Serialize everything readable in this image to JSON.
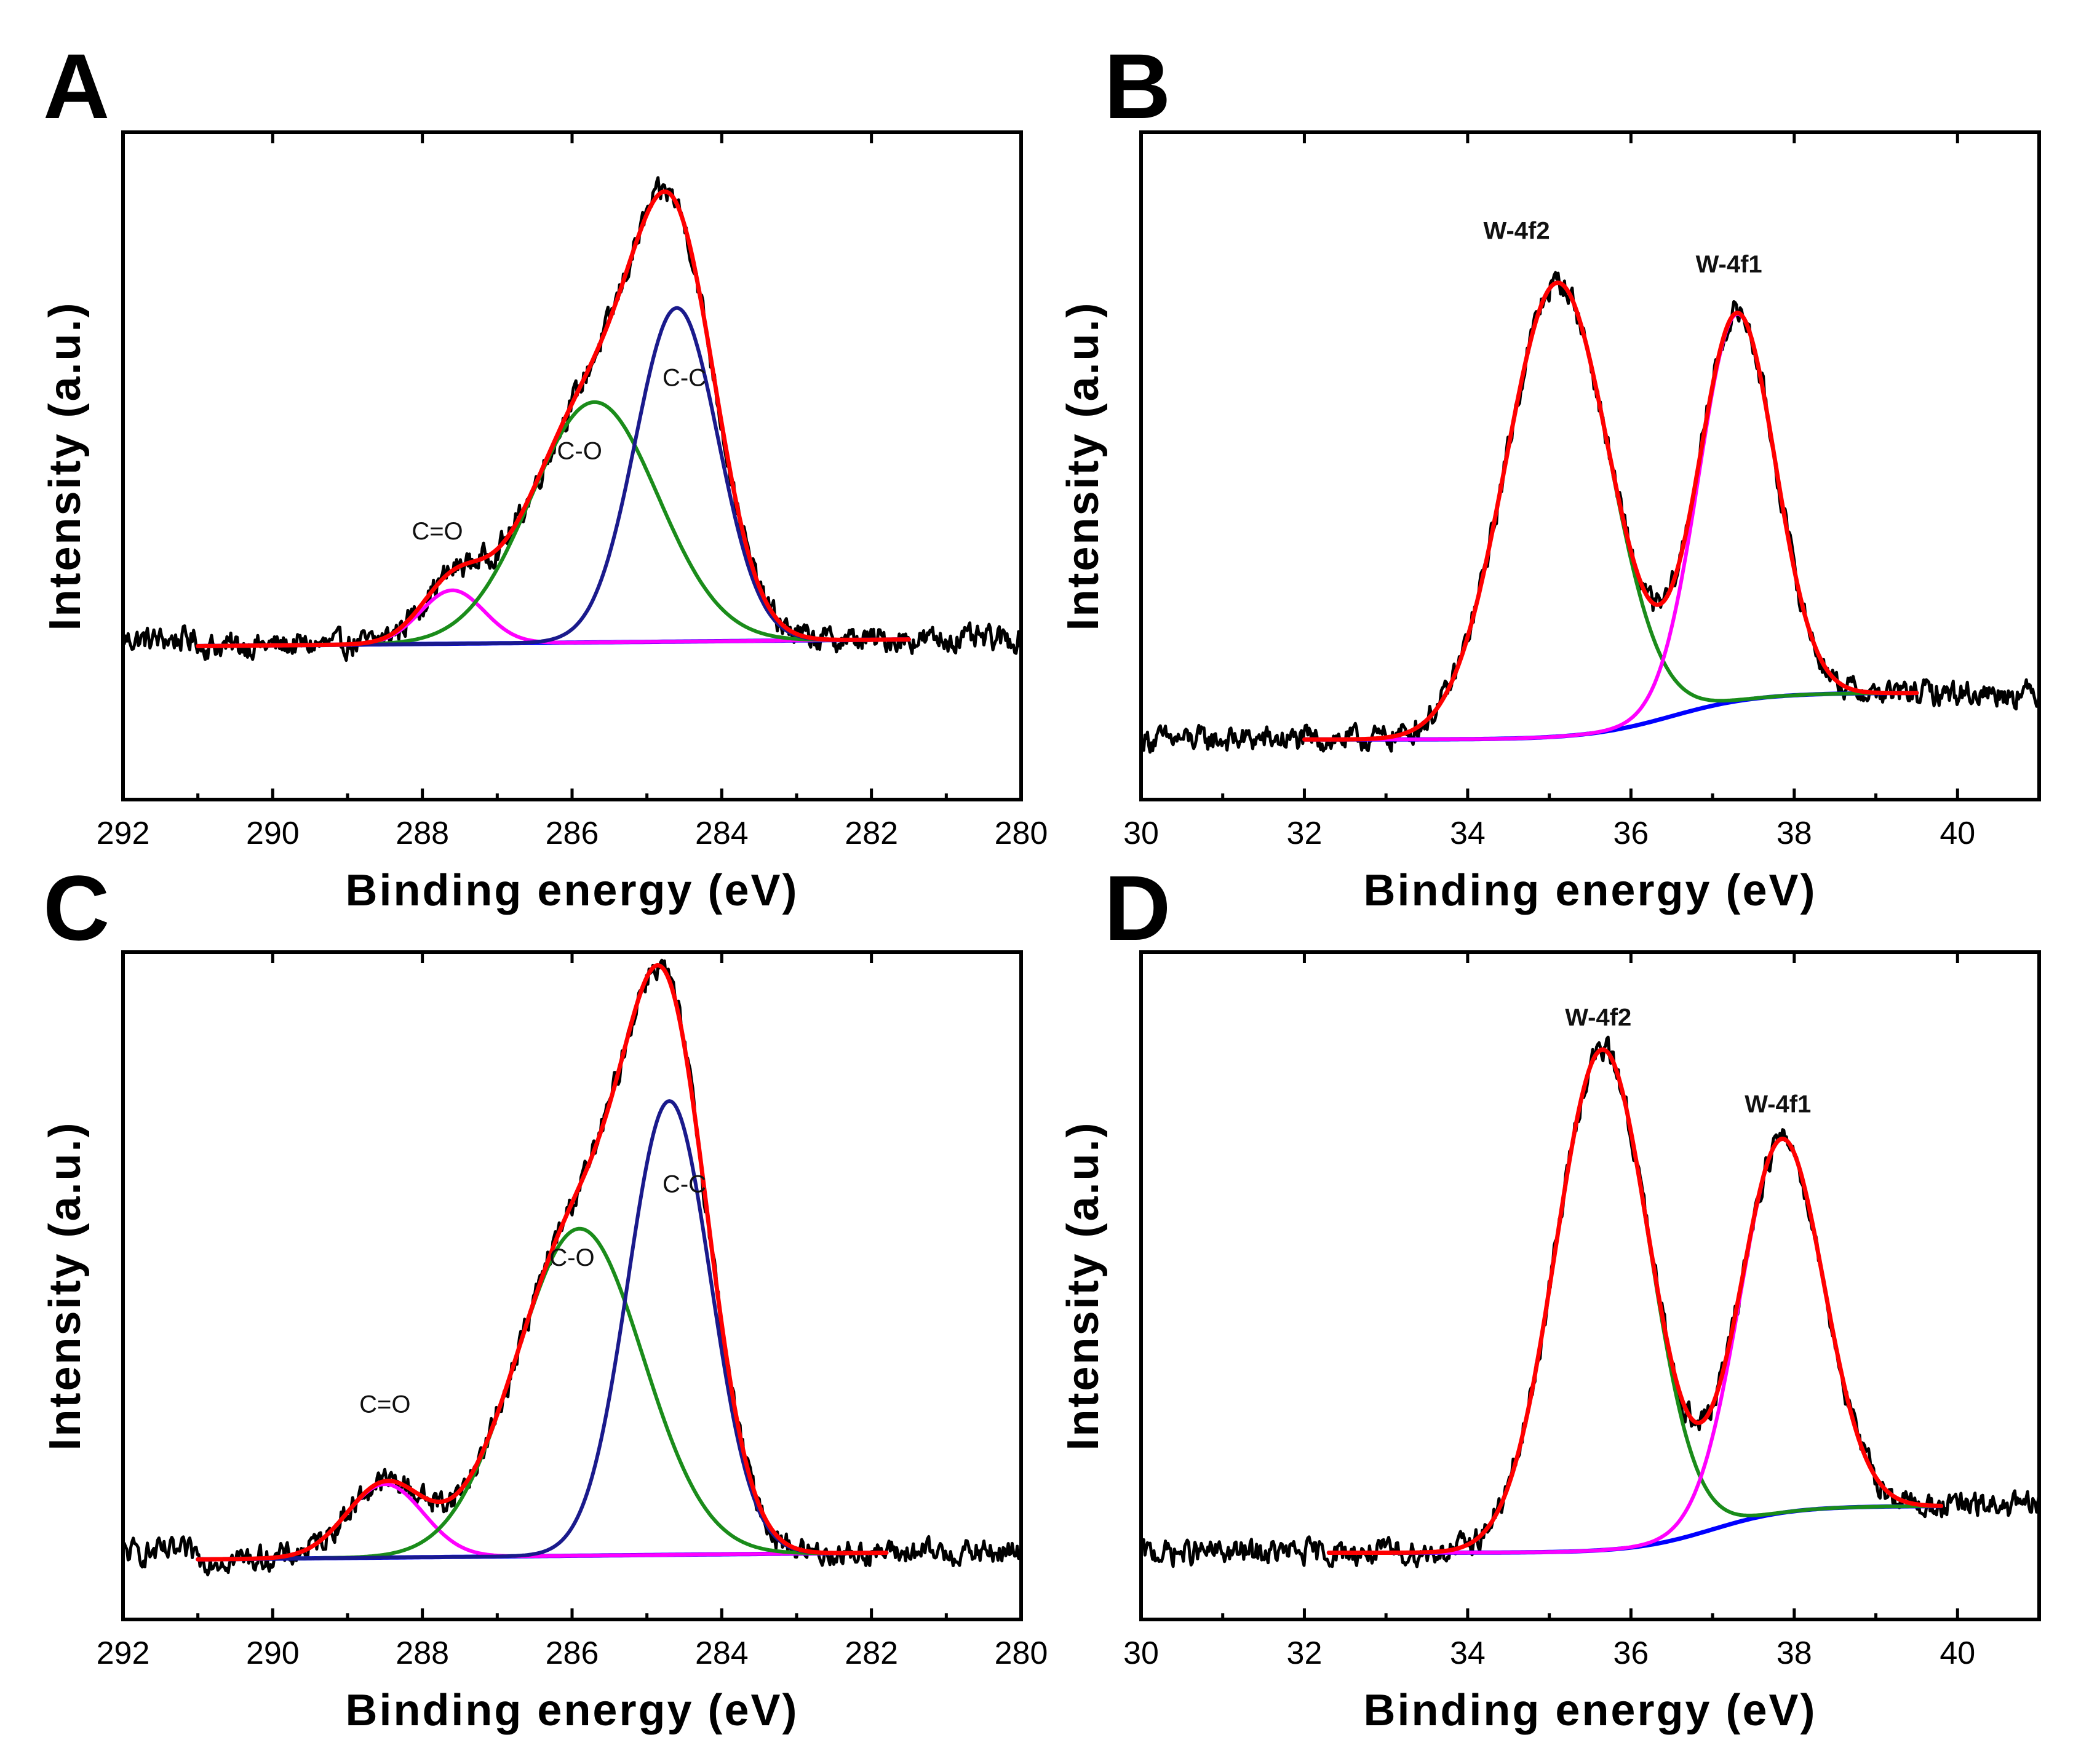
{
  "figure": {
    "colors": {
      "raw": "#000000",
      "envelope": "#ff0000",
      "c_c": "#1a1a8c",
      "c_o": "#1a8c1a",
      "c_eq_o": "#ff00ff",
      "w_4f2": "#1a8c1a",
      "w_4f1": "#ff00ff",
      "background": "#0000ff"
    }
  },
  "chart_data": [
    {
      "id": "A",
      "panel_label": "A",
      "type": "line",
      "title": "",
      "xlabel": "Binding energy (eV)",
      "ylabel": "Intensity (a.u.)",
      "xlim": [
        292,
        280
      ],
      "x_reversed": true,
      "ylim": [
        0,
        100
      ],
      "xticks": [
        292,
        290,
        288,
        286,
        284,
        282,
        280
      ],
      "xtick_labels": [
        "292",
        "290",
        "288",
        "286",
        "284",
        "282",
        "280"
      ],
      "yticks_visible": false,
      "raw_range": [
        292,
        280
      ],
      "raw_baseline": 24,
      "fit_range": [
        291,
        281.5
      ],
      "baseline": {
        "type": "linear",
        "x": [
          291,
          281.5
        ],
        "y": [
          23,
          24
        ]
      },
      "series": [
        {
          "name": "C=O",
          "color_key": "c_eq_o",
          "center": 287.6,
          "height": 8,
          "fwhm": 1.0
        },
        {
          "name": "C-O",
          "color_key": "c_o",
          "center": 285.7,
          "height": 36,
          "fwhm": 2.0
        },
        {
          "name": "C-C",
          "color_key": "c_c",
          "center": 284.6,
          "height": 50,
          "fwhm": 1.3
        }
      ],
      "annotations": [
        {
          "text": "C=O",
          "x": 287.8,
          "y": 39
        },
        {
          "text": "C-O",
          "x": 285.9,
          "y": 51
        },
        {
          "text": "C-C",
          "x": 284.5,
          "y": 62
        }
      ]
    },
    {
      "id": "B",
      "panel_label": "B",
      "type": "line",
      "title": "",
      "xlabel": "Binding energy (eV)",
      "ylabel": "Intensity (a.u.)",
      "xlim": [
        30,
        41
      ],
      "x_reversed": false,
      "ylim": [
        0,
        100
      ],
      "xticks": [
        30,
        32,
        34,
        36,
        38,
        40
      ],
      "xtick_labels": [
        "30",
        "32",
        "34",
        "36",
        "38",
        "40"
      ],
      "yticks_visible": false,
      "raw_range": [
        30,
        41
      ],
      "fit_range": [
        32,
        39.5
      ],
      "baseline": {
        "type": "shirley",
        "x": [
          32,
          39.5
        ],
        "y": [
          9,
          16
        ],
        "step_center": 36.5,
        "step_width": 1.3
      },
      "series": [
        {
          "name": "W-4f2",
          "color_key": "w_4f2",
          "center": 35.1,
          "height": 68,
          "fwhm": 1.5
        },
        {
          "name": "W-4f1",
          "color_key": "w_4f1",
          "center": 37.3,
          "height": 58,
          "fwhm": 1.1
        }
      ],
      "annotations": [
        {
          "text": "W-4f2",
          "x": 34.6,
          "y": 84
        },
        {
          "text": "W-4f1",
          "x": 37.2,
          "y": 79
        }
      ]
    },
    {
      "id": "C",
      "panel_label": "C",
      "type": "line",
      "title": "",
      "xlabel": "Binding energy (eV)",
      "ylabel": "Intensity (a.u.)",
      "xlim": [
        292,
        280
      ],
      "x_reversed": true,
      "ylim": [
        0,
        100
      ],
      "xticks": [
        292,
        290,
        288,
        286,
        284,
        282,
        280
      ],
      "xtick_labels": [
        "292",
        "290",
        "288",
        "286",
        "284",
        "282",
        "280"
      ],
      "yticks_visible": false,
      "raw_range": [
        292,
        280
      ],
      "raw_baseline": 10,
      "fit_range": [
        291,
        281.8
      ],
      "baseline": {
        "type": "linear",
        "x": [
          291,
          281.8
        ],
        "y": [
          9,
          10
        ]
      },
      "series": [
        {
          "name": "C=O",
          "color_key": "c_eq_o",
          "center": 288.5,
          "height": 11,
          "fwhm": 1.2
        },
        {
          "name": "C-O",
          "color_key": "c_o",
          "center": 285.9,
          "height": 49,
          "fwhm": 2.0
        },
        {
          "name": "C-C",
          "color_key": "c_c",
          "center": 284.7,
          "height": 68,
          "fwhm": 1.3
        }
      ],
      "annotations": [
        {
          "text": "C=O",
          "x": 288.5,
          "y": 31
        },
        {
          "text": "C-O",
          "x": 286.0,
          "y": 53
        },
        {
          "text": "C-C",
          "x": 284.5,
          "y": 64
        }
      ]
    },
    {
      "id": "D",
      "panel_label": "D",
      "type": "line",
      "title": "",
      "xlabel": "Binding energy (eV)",
      "ylabel": "Intensity (a.u.)",
      "xlim": [
        30,
        41
      ],
      "x_reversed": false,
      "ylim": [
        0,
        100
      ],
      "xticks": [
        30,
        32,
        34,
        36,
        38,
        40
      ],
      "xtick_labels": [
        "30",
        "32",
        "34",
        "36",
        "38",
        "40"
      ],
      "yticks_visible": false,
      "raw_range": [
        30,
        41
      ],
      "fit_range": [
        32.3,
        39.8
      ],
      "baseline": {
        "type": "shirley",
        "x": [
          32.3,
          39.8
        ],
        "y": [
          10,
          17
        ],
        "step_center": 37.0,
        "step_width": 1.2
      },
      "series": [
        {
          "name": "W-4f2",
          "color_key": "w_4f2",
          "center": 35.65,
          "height": 75,
          "fwhm": 1.35
        },
        {
          "name": "W-4f1",
          "color_key": "w_4f1",
          "center": 37.85,
          "height": 56,
          "fwhm": 1.2
        }
      ],
      "annotations": [
        {
          "text": "W-4f2",
          "x": 35.6,
          "y": 89
        },
        {
          "text": "W-4f1",
          "x": 37.8,
          "y": 76
        }
      ]
    }
  ]
}
